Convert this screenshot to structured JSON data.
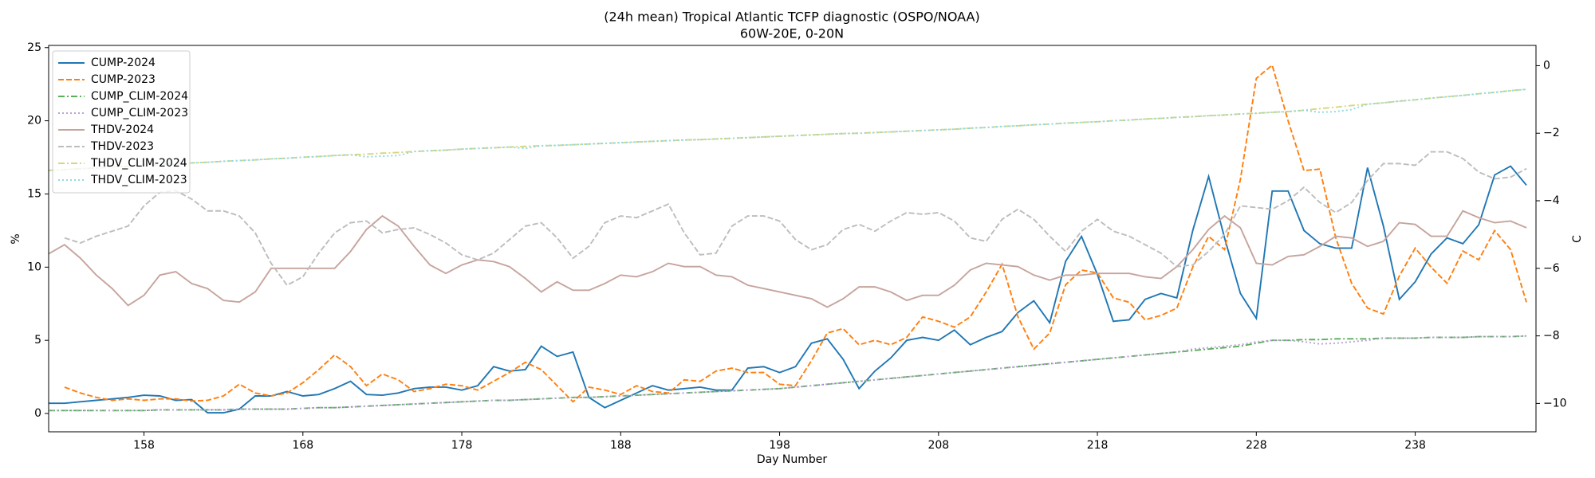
{
  "chart_data": {
    "type": "line",
    "title": "(24h mean) Tropical Atlantic TCFP diagnostic (OSPO/NOAA)",
    "subtitle": "60W-20E, 0-20N",
    "xlabel": "Day Number",
    "ylabel": "%",
    "y2label": "C",
    "x": [
      152,
      153,
      154,
      155,
      156,
      157,
      158,
      159,
      160,
      161,
      162,
      163,
      164,
      165,
      166,
      167,
      168,
      169,
      170,
      171,
      172,
      173,
      174,
      175,
      176,
      177,
      178,
      179,
      180,
      181,
      182,
      183,
      184,
      185,
      186,
      187,
      188,
      189,
      190,
      191,
      192,
      193,
      194,
      195,
      196,
      197,
      198,
      199,
      200,
      201,
      202,
      203,
      204,
      205,
      206,
      207,
      208,
      209,
      210,
      211,
      212,
      213,
      214,
      215,
      216,
      217,
      218,
      219,
      220,
      221,
      222,
      223,
      224,
      225,
      226,
      227,
      228,
      229,
      230,
      231,
      232,
      233,
      234,
      235,
      236,
      237,
      238,
      239,
      240,
      241,
      242,
      243,
      244,
      245
    ],
    "xlim": [
      152,
      245.6
    ],
    "xticks": [
      158,
      168,
      178,
      188,
      198,
      208,
      218,
      228,
      238
    ],
    "ylim": [
      -1.25,
      25.15
    ],
    "yticks": [
      0,
      5,
      10,
      15,
      20,
      25
    ],
    "y2lim": [
      -10.84,
      0.6
    ],
    "y2ticks": [
      {
        "value": -10,
        "label": "−10"
      },
      {
        "value": -8,
        "label": "−8"
      },
      {
        "value": -6,
        "label": "−6"
      },
      {
        "value": -4,
        "label": "−4"
      },
      {
        "value": -2,
        "label": "−2"
      },
      0
    ],
    "legend": "upper left",
    "series": [
      {
        "name": "CUMP-2024",
        "color": "#1f77b4",
        "linestyle": "solid",
        "values": [
          0.7,
          0.7,
          0.8,
          0.9,
          1.0,
          1.1,
          1.25,
          1.2,
          0.9,
          0.95,
          0.05,
          0.05,
          0.3,
          1.2,
          1.2,
          1.5,
          1.2,
          1.3,
          1.7,
          2.2,
          1.3,
          1.25,
          1.4,
          1.7,
          1.8,
          1.8,
          1.6,
          1.9,
          3.2,
          2.9,
          3.0,
          4.6,
          3.9,
          4.2,
          1.1,
          0.4,
          0.9,
          1.4,
          1.9,
          1.6,
          1.7,
          1.8,
          1.6,
          1.6,
          3.1,
          3.2,
          2.8,
          3.2,
          4.8,
          5.1,
          3.7,
          1.7,
          2.9,
          3.8,
          5.0,
          5.2,
          5.0,
          5.7,
          4.7,
          5.2,
          5.6,
          6.9,
          7.7,
          6.2,
          10.4,
          12.1,
          9.5,
          6.3,
          6.4,
          7.8,
          8.2,
          7.9,
          12.5,
          16.2,
          12.0,
          8.2,
          6.5,
          15.2,
          15.2,
          12.5,
          11.6,
          11.3,
          11.3,
          16.8,
          12.8,
          7.8,
          9.0,
          10.9,
          12.0,
          11.6,
          12.9,
          16.3,
          16.9,
          15.6
        ]
      },
      {
        "name": "CUMP-2023",
        "color": "#ff7f0e",
        "linestyle": "dashed",
        "values": [
          null,
          1.8,
          1.4,
          1.1,
          0.9,
          1.0,
          0.9,
          1.0,
          1.0,
          0.85,
          0.9,
          1.2,
          2.0,
          1.4,
          1.2,
          1.4,
          2.1,
          3.0,
          4.0,
          3.2,
          1.9,
          2.7,
          2.3,
          1.5,
          1.7,
          2.0,
          1.9,
          1.6,
          2.2,
          2.8,
          3.5,
          3.0,
          1.9,
          0.8,
          1.8,
          1.6,
          1.3,
          1.9,
          1.5,
          1.4,
          2.3,
          2.2,
          2.9,
          3.1,
          2.8,
          2.8,
          2.0,
          1.9,
          3.6,
          5.5,
          5.8,
          4.7,
          5.0,
          4.7,
          5.2,
          6.6,
          6.3,
          5.9,
          6.6,
          8.3,
          10.2,
          6.6,
          4.4,
          5.5,
          8.8,
          9.8,
          9.6,
          7.9,
          7.6,
          6.4,
          6.7,
          7.2,
          10.0,
          12.1,
          11.2,
          16.0,
          22.9,
          23.8,
          20.0,
          16.6,
          16.7,
          12.0,
          8.9,
          7.2,
          6.8,
          9.4,
          11.3,
          10.0,
          8.9,
          11.1,
          10.5,
          12.5,
          11.2,
          7.6
        ]
      },
      {
        "name": "CUMP_CLIM-2024",
        "color": "#5aaf5a",
        "linestyle": "dashdot",
        "values": [
          0.2,
          0.2,
          0.2,
          0.2,
          0.2,
          0.2,
          0.2,
          0.25,
          0.25,
          0.25,
          0.25,
          0.25,
          0.3,
          0.3,
          0.3,
          0.3,
          0.35,
          0.4,
          0.4,
          0.45,
          0.5,
          0.55,
          0.6,
          0.65,
          0.7,
          0.75,
          0.8,
          0.85,
          0.9,
          0.9,
          0.95,
          1.0,
          1.05,
          1.1,
          1.1,
          1.15,
          1.2,
          1.25,
          1.3,
          1.35,
          1.4,
          1.45,
          1.5,
          1.55,
          1.6,
          1.65,
          1.7,
          1.8,
          1.9,
          2.0,
          2.1,
          2.2,
          2.3,
          2.4,
          2.5,
          2.6,
          2.7,
          2.8,
          2.9,
          3.0,
          3.1,
          3.2,
          3.3,
          3.4,
          3.5,
          3.6,
          3.7,
          3.8,
          3.9,
          4.0,
          4.1,
          4.2,
          4.3,
          4.4,
          4.5,
          4.6,
          4.8,
          5.0,
          5.0,
          5.05,
          5.05,
          5.1,
          5.1,
          5.1,
          5.15,
          5.15,
          5.15,
          5.2,
          5.2,
          5.2,
          5.25,
          5.25,
          5.25,
          5.3
        ]
      },
      {
        "name": "CUMP_CLIM-2023",
        "color": "#b9a3d6",
        "linestyle": "dotted",
        "values": [
          0.2,
          0.2,
          0.2,
          0.2,
          0.2,
          0.2,
          0.2,
          0.25,
          0.25,
          0.25,
          0.25,
          0.25,
          0.3,
          0.3,
          0.3,
          0.3,
          0.35,
          0.4,
          0.4,
          0.45,
          0.5,
          0.55,
          0.6,
          0.65,
          0.7,
          0.75,
          0.8,
          0.85,
          0.9,
          0.9,
          0.95,
          1.0,
          1.05,
          1.1,
          1.1,
          1.15,
          1.2,
          1.25,
          1.3,
          1.35,
          1.4,
          1.45,
          1.5,
          1.55,
          1.6,
          1.65,
          1.7,
          1.8,
          1.9,
          2.0,
          2.1,
          2.2,
          2.3,
          2.4,
          2.5,
          2.6,
          2.7,
          2.8,
          2.9,
          3.0,
          3.1,
          3.2,
          3.3,
          3.4,
          3.5,
          3.6,
          3.7,
          3.8,
          3.9,
          4.0,
          4.1,
          4.2,
          4.4,
          4.5,
          4.6,
          4.7,
          4.9,
          5.0,
          5.0,
          4.9,
          4.75,
          4.8,
          4.9,
          5.0,
          5.15,
          5.15,
          5.15,
          5.2,
          5.2,
          5.2,
          5.25,
          5.25,
          5.25,
          5.3
        ]
      },
      {
        "name": "THDV-2024",
        "color": "#c6a49d",
        "linestyle": "solid",
        "axis": "y2",
        "values": [
          -5.57,
          -5.3,
          -5.7,
          -6.2,
          -6.6,
          -7.1,
          -6.8,
          -6.2,
          -6.1,
          -6.45,
          -6.6,
          -6.95,
          -7.0,
          -6.7,
          -6.0,
          -6.0,
          -6.0,
          -6.0,
          -6.0,
          -5.5,
          -4.85,
          -4.45,
          -4.75,
          -5.35,
          -5.9,
          -6.15,
          -5.9,
          -5.75,
          -5.8,
          -5.95,
          -6.3,
          -6.7,
          -6.4,
          -6.65,
          -6.65,
          -6.45,
          -6.2,
          -6.25,
          -6.1,
          -5.85,
          -5.95,
          -5.95,
          -6.2,
          -6.25,
          -6.5,
          -6.6,
          -6.7,
          -6.8,
          -6.9,
          -7.15,
          -6.9,
          -6.55,
          -6.55,
          -6.7,
          -6.95,
          -6.8,
          -6.8,
          -6.5,
          -6.05,
          -5.85,
          -5.9,
          -5.95,
          -6.2,
          -6.35,
          -6.2,
          -6.2,
          -6.15,
          -6.15,
          -6.15,
          -6.25,
          -6.3,
          -5.95,
          -5.45,
          -4.85,
          -4.45,
          -4.8,
          -5.85,
          -5.9,
          -5.65,
          -5.6,
          -5.35,
          -5.05,
          -5.1,
          -5.35,
          -5.2,
          -4.65,
          -4.7,
          -5.05,
          -5.05,
          -4.3,
          -4.5,
          -4.65,
          -4.6,
          -4.8
        ]
      },
      {
        "name": "THDV-2023",
        "color": "#bdbdbd",
        "linestyle": "dashed",
        "axis": "y2",
        "values": [
          null,
          -5.1,
          -5.25,
          -5.05,
          -4.9,
          -4.75,
          -4.15,
          -3.75,
          -3.7,
          -3.95,
          -4.3,
          -4.3,
          -4.45,
          -4.95,
          -5.85,
          -6.5,
          -6.25,
          -5.55,
          -4.95,
          -4.65,
          -4.6,
          -4.95,
          -4.85,
          -4.8,
          -5.0,
          -5.25,
          -5.6,
          -5.75,
          -5.55,
          -5.15,
          -4.75,
          -4.65,
          -5.1,
          -5.7,
          -5.35,
          -4.65,
          -4.45,
          -4.5,
          -4.3,
          -4.1,
          -4.95,
          -5.6,
          -5.55,
          -4.75,
          -4.45,
          -4.45,
          -4.6,
          -5.15,
          -5.45,
          -5.3,
          -4.85,
          -4.7,
          -4.9,
          -4.6,
          -4.35,
          -4.4,
          -4.35,
          -4.6,
          -5.1,
          -5.2,
          -4.55,
          -4.25,
          -4.55,
          -5.05,
          -5.5,
          -4.9,
          -4.55,
          -4.9,
          -5.05,
          -5.3,
          -5.55,
          -5.95,
          -5.9,
          -5.5,
          -5.0,
          -4.15,
          -4.2,
          -4.25,
          -4.0,
          -3.6,
          -4.05,
          -4.35,
          -4.05,
          -3.4,
          -2.9,
          -2.9,
          -2.95,
          -2.55,
          -2.55,
          -2.75,
          -3.15,
          -3.35,
          -3.3,
          -3.05
        ]
      },
      {
        "name": "THDV_CLIM-2024",
        "color": "#d6d77e",
        "linestyle": "dashdot",
        "axis": "y2",
        "values": [
          -3.1,
          -3.08,
          -3.05,
          -3.03,
          -3.0,
          -2.98,
          -2.95,
          -2.93,
          -2.91,
          -2.88,
          -2.86,
          -2.83,
          -2.81,
          -2.79,
          -2.76,
          -2.74,
          -2.71,
          -2.69,
          -2.66,
          -2.64,
          -2.62,
          -2.59,
          -2.57,
          -2.54,
          -2.52,
          -2.5,
          -2.47,
          -2.45,
          -2.43,
          -2.41,
          -2.39,
          -2.37,
          -2.36,
          -2.34,
          -2.32,
          -2.3,
          -2.28,
          -2.26,
          -2.24,
          -2.22,
          -2.2,
          -2.19,
          -2.17,
          -2.15,
          -2.13,
          -2.11,
          -2.09,
          -2.07,
          -2.05,
          -2.03,
          -2.01,
          -2.0,
          -1.98,
          -1.96,
          -1.94,
          -1.92,
          -1.9,
          -1.88,
          -1.85,
          -1.83,
          -1.8,
          -1.78,
          -1.75,
          -1.73,
          -1.7,
          -1.68,
          -1.66,
          -1.63,
          -1.61,
          -1.58,
          -1.56,
          -1.53,
          -1.51,
          -1.48,
          -1.46,
          -1.43,
          -1.41,
          -1.38,
          -1.36,
          -1.32,
          -1.27,
          -1.23,
          -1.18,
          -1.14,
          -1.1,
          -1.05,
          -1.01,
          -0.96,
          -0.92,
          -0.88,
          -0.83,
          -0.79,
          -0.74,
          -0.7
        ]
      },
      {
        "name": "THDV_CLIM-2023",
        "color": "#8fd9e3",
        "linestyle": "dotted",
        "axis": "y2",
        "values": [
          -3.1,
          -3.08,
          -3.05,
          -3.03,
          -3.0,
          -2.98,
          -2.95,
          -2.93,
          -2.91,
          -2.88,
          -2.86,
          -2.83,
          -2.81,
          -2.79,
          -2.76,
          -2.74,
          -2.71,
          -2.69,
          -2.66,
          -2.64,
          -2.7,
          -2.68,
          -2.66,
          -2.54,
          -2.52,
          -2.5,
          -2.47,
          -2.45,
          -2.43,
          -2.41,
          -2.45,
          -2.37,
          -2.36,
          -2.34,
          -2.32,
          -2.3,
          -2.28,
          -2.26,
          -2.24,
          -2.22,
          -2.2,
          -2.19,
          -2.17,
          -2.15,
          -2.13,
          -2.11,
          -2.09,
          -2.07,
          -2.05,
          -2.03,
          -2.01,
          -2.0,
          -1.98,
          -1.96,
          -1.94,
          -1.92,
          -1.9,
          -1.88,
          -1.85,
          -1.83,
          -1.8,
          -1.78,
          -1.75,
          -1.73,
          -1.7,
          -1.68,
          -1.66,
          -1.63,
          -1.61,
          -1.58,
          -1.56,
          -1.53,
          -1.51,
          -1.48,
          -1.46,
          -1.43,
          -1.41,
          -1.38,
          -1.36,
          -1.32,
          -1.38,
          -1.36,
          -1.3,
          -1.14,
          -1.1,
          -1.05,
          -1.01,
          -0.96,
          -0.92,
          -0.88,
          -0.83,
          -0.79,
          -0.74,
          -0.7
        ]
      }
    ]
  }
}
